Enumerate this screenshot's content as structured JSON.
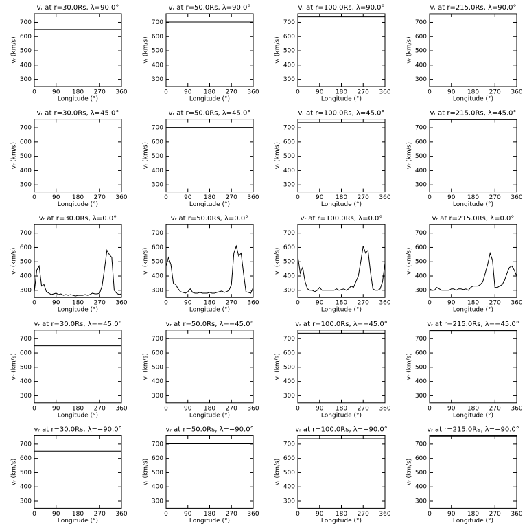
{
  "chart_data": [
    {
      "type": "line",
      "title": "vᵣ at r=30.0Rs, λ=90.0°",
      "x_label": "Longitude (°)",
      "y_label": "vᵣ (km/s)",
      "x": [
        0,
        360
      ],
      "values": [
        650,
        650
      ],
      "color": "#000000",
      "xlim": [
        0,
        360
      ],
      "ylim": [
        250,
        760
      ],
      "xticks": [
        0,
        90,
        180,
        270,
        360
      ],
      "yticks": [
        300,
        400,
        500,
        600,
        700
      ]
    },
    {
      "type": "line",
      "title": "vᵣ at r=50.0Rs, λ=90.0°",
      "x_label": "Longitude (°)",
      "y_label": "vᵣ (km/s)",
      "x": [
        0,
        360
      ],
      "values": [
        702,
        702
      ],
      "color": "#000000",
      "xlim": [
        0,
        360
      ],
      "ylim": [
        250,
        760
      ],
      "xticks": [
        0,
        90,
        180,
        270,
        360
      ],
      "yticks": [
        300,
        400,
        500,
        600,
        700
      ]
    },
    {
      "type": "line",
      "title": "vᵣ at r=100.0Rs, λ=90.0°",
      "x_label": "Longitude (°)",
      "y_label": "vᵣ (km/s)",
      "x": [
        0,
        360
      ],
      "values": [
        738,
        738
      ],
      "color": "#000000",
      "xlim": [
        0,
        360
      ],
      "ylim": [
        250,
        760
      ],
      "xticks": [
        0,
        90,
        180,
        270,
        360
      ],
      "yticks": [
        300,
        400,
        500,
        600,
        700
      ]
    },
    {
      "type": "line",
      "title": "vᵣ at r=215.0Rs, λ=90.0°",
      "x_label": "Longitude (°)",
      "y_label": "vᵣ (km/s)",
      "x": [
        0,
        360
      ],
      "values": [
        756,
        756
      ],
      "color": "#000000",
      "xlim": [
        0,
        360
      ],
      "ylim": [
        250,
        760
      ],
      "xticks": [
        0,
        90,
        180,
        270,
        360
      ],
      "yticks": [
        300,
        400,
        500,
        600,
        700
      ]
    },
    {
      "type": "line",
      "title": "vᵣ at r=30.0Rs, λ=45.0°",
      "x_label": "Longitude (°)",
      "y_label": "vᵣ (km/s)",
      "x": [
        0,
        360
      ],
      "values": [
        650,
        650
      ],
      "color": "#000000",
      "xlim": [
        0,
        360
      ],
      "ylim": [
        250,
        760
      ],
      "xticks": [
        0,
        90,
        180,
        270,
        360
      ],
      "yticks": [
        300,
        400,
        500,
        600,
        700
      ]
    },
    {
      "type": "line",
      "title": "vᵣ at r=50.0Rs, λ=45.0°",
      "x_label": "Longitude (°)",
      "y_label": "vᵣ (km/s)",
      "x": [
        0,
        360
      ],
      "values": [
        702,
        702
      ],
      "color": "#000000",
      "xlim": [
        0,
        360
      ],
      "ylim": [
        250,
        760
      ],
      "xticks": [
        0,
        90,
        180,
        270,
        360
      ],
      "yticks": [
        300,
        400,
        500,
        600,
        700
      ]
    },
    {
      "type": "line",
      "title": "vᵣ at r=100.0Rs, λ=45.0°",
      "x_label": "Longitude (°)",
      "y_label": "vᵣ (km/s)",
      "x": [
        0,
        360
      ],
      "values": [
        738,
        738
      ],
      "color": "#000000",
      "xlim": [
        0,
        360
      ],
      "ylim": [
        250,
        760
      ],
      "xticks": [
        0,
        90,
        180,
        270,
        360
      ],
      "yticks": [
        300,
        400,
        500,
        600,
        700
      ]
    },
    {
      "type": "line",
      "title": "vᵣ at r=215.0Rs, λ=45.0°",
      "x_label": "Longitude (°)",
      "y_label": "vᵣ (km/s)",
      "x": [
        0,
        360
      ],
      "values": [
        756,
        756
      ],
      "color": "#000000",
      "xlim": [
        0,
        360
      ],
      "ylim": [
        250,
        760
      ],
      "xticks": [
        0,
        90,
        180,
        270,
        360
      ],
      "yticks": [
        300,
        400,
        500,
        600,
        700
      ]
    },
    {
      "type": "line",
      "title": "vᵣ at r=30.0Rs, λ=0.0°",
      "x_label": "Longitude (°)",
      "y_label": "vᵣ (km/s)",
      "x": [
        0,
        10,
        20,
        30,
        40,
        50,
        60,
        70,
        80,
        90,
        100,
        110,
        120,
        130,
        140,
        150,
        160,
        170,
        180,
        190,
        200,
        210,
        220,
        230,
        240,
        250,
        260,
        270,
        280,
        290,
        300,
        310,
        320,
        330,
        340,
        350,
        360
      ],
      "values": [
        290,
        440,
        470,
        330,
        340,
        290,
        280,
        270,
        275,
        280,
        270,
        275,
        265,
        270,
        265,
        270,
        265,
        260,
        265,
        265,
        265,
        270,
        265,
        270,
        280,
        275,
        275,
        280,
        330,
        450,
        580,
        550,
        530,
        300,
        280,
        270,
        275
      ],
      "color": "#000000",
      "xlim": [
        0,
        360
      ],
      "ylim": [
        250,
        760
      ],
      "xticks": [
        0,
        90,
        180,
        270,
        360
      ],
      "yticks": [
        300,
        400,
        500,
        600,
        700
      ]
    },
    {
      "type": "line",
      "title": "vᵣ at r=50.0Rs, λ=0.0°",
      "x_label": "Longitude (°)",
      "y_label": "vᵣ (km/s)",
      "x": [
        0,
        10,
        20,
        30,
        40,
        50,
        60,
        70,
        80,
        90,
        100,
        110,
        120,
        130,
        140,
        150,
        160,
        170,
        180,
        190,
        200,
        210,
        220,
        230,
        240,
        250,
        260,
        270,
        280,
        290,
        300,
        310,
        320,
        330,
        340,
        350,
        360
      ],
      "values": [
        470,
        530,
        480,
        350,
        340,
        310,
        290,
        285,
        280,
        290,
        310,
        285,
        280,
        280,
        285,
        280,
        280,
        280,
        285,
        280,
        280,
        285,
        290,
        295,
        285,
        290,
        300,
        340,
        560,
        610,
        540,
        560,
        420,
        290,
        285,
        280,
        320
      ],
      "color": "#000000",
      "xlim": [
        0,
        360
      ],
      "ylim": [
        250,
        760
      ],
      "xticks": [
        0,
        90,
        180,
        270,
        360
      ],
      "yticks": [
        300,
        400,
        500,
        600,
        700
      ]
    },
    {
      "type": "line",
      "title": "vᵣ at r=100.0Rs, λ=0.0°",
      "x_label": "Longitude (°)",
      "y_label": "vᵣ (km/s)",
      "x": [
        0,
        10,
        20,
        30,
        40,
        50,
        60,
        70,
        80,
        90,
        100,
        110,
        120,
        130,
        140,
        150,
        160,
        170,
        180,
        190,
        200,
        210,
        220,
        230,
        240,
        250,
        260,
        270,
        280,
        290,
        300,
        310,
        320,
        330,
        340,
        350,
        360
      ],
      "values": [
        540,
        420,
        460,
        360,
        310,
        300,
        300,
        290,
        300,
        320,
        300,
        300,
        300,
        300,
        300,
        300,
        310,
        300,
        305,
        310,
        300,
        310,
        330,
        320,
        360,
        400,
        500,
        610,
        560,
        580,
        430,
        310,
        300,
        300,
        310,
        360,
        490
      ],
      "color": "#000000",
      "xlim": [
        0,
        360
      ],
      "ylim": [
        250,
        760
      ],
      "xticks": [
        0,
        90,
        180,
        270,
        360
      ],
      "yticks": [
        300,
        400,
        500,
        600,
        700
      ]
    },
    {
      "type": "line",
      "title": "vᵣ at r=215.0Rs, λ=0.0°",
      "x_label": "Longitude (°)",
      "y_label": "vᵣ (km/s)",
      "x": [
        0,
        10,
        20,
        30,
        40,
        50,
        60,
        70,
        80,
        90,
        100,
        110,
        120,
        130,
        140,
        150,
        160,
        170,
        180,
        190,
        200,
        210,
        220,
        230,
        240,
        250,
        260,
        270,
        280,
        290,
        300,
        310,
        320,
        330,
        340,
        350,
        360
      ],
      "values": [
        310,
        300,
        300,
        320,
        310,
        300,
        300,
        300,
        300,
        310,
        310,
        300,
        310,
        310,
        305,
        310,
        300,
        320,
        330,
        330,
        330,
        340,
        360,
        420,
        480,
        560,
        510,
        320,
        320,
        330,
        340,
        370,
        420,
        460,
        470,
        440,
        400
      ],
      "color": "#000000",
      "xlim": [
        0,
        360
      ],
      "ylim": [
        250,
        760
      ],
      "xticks": [
        0,
        90,
        180,
        270,
        360
      ],
      "yticks": [
        300,
        400,
        500,
        600,
        700
      ]
    },
    {
      "type": "line",
      "title": "vᵣ at r=30.0Rs, λ=−45.0°",
      "x_label": "Longitude (°)",
      "y_label": "vᵣ (km/s)",
      "x": [
        0,
        360
      ],
      "values": [
        650,
        650
      ],
      "color": "#000000",
      "xlim": [
        0,
        360
      ],
      "ylim": [
        250,
        760
      ],
      "xticks": [
        0,
        90,
        180,
        270,
        360
      ],
      "yticks": [
        300,
        400,
        500,
        600,
        700
      ]
    },
    {
      "type": "line",
      "title": "vᵣ at r=50.0Rs, λ=−45.0°",
      "x_label": "Longitude (°)",
      "y_label": "vᵣ (km/s)",
      "x": [
        0,
        360
      ],
      "values": [
        702,
        702
      ],
      "color": "#000000",
      "xlim": [
        0,
        360
      ],
      "ylim": [
        250,
        760
      ],
      "xticks": [
        0,
        90,
        180,
        270,
        360
      ],
      "yticks": [
        300,
        400,
        500,
        600,
        700
      ]
    },
    {
      "type": "line",
      "title": "vᵣ at r=100.0Rs, λ=−45.0°",
      "x_label": "Longitude (°)",
      "y_label": "vᵣ (km/s)",
      "x": [
        0,
        360
      ],
      "values": [
        738,
        738
      ],
      "color": "#000000",
      "xlim": [
        0,
        360
      ],
      "ylim": [
        250,
        760
      ],
      "xticks": [
        0,
        90,
        180,
        270,
        360
      ],
      "yticks": [
        300,
        400,
        500,
        600,
        700
      ]
    },
    {
      "type": "line",
      "title": "vᵣ at r=215.0Rs, λ=−45.0°",
      "x_label": "Longitude (°)",
      "y_label": "vᵣ (km/s)",
      "x": [
        0,
        360
      ],
      "values": [
        756,
        756
      ],
      "color": "#000000",
      "xlim": [
        0,
        360
      ],
      "ylim": [
        250,
        760
      ],
      "xticks": [
        0,
        90,
        180,
        270,
        360
      ],
      "yticks": [
        300,
        400,
        500,
        600,
        700
      ]
    },
    {
      "type": "line",
      "title": "vᵣ at r=30.0Rs, λ=−90.0°",
      "x_label": "Longitude (°)",
      "y_label": "vᵣ (km/s)",
      "x": [
        0,
        360
      ],
      "values": [
        650,
        650
      ],
      "color": "#000000",
      "xlim": [
        0,
        360
      ],
      "ylim": [
        250,
        760
      ],
      "xticks": [
        0,
        90,
        180,
        270,
        360
      ],
      "yticks": [
        300,
        400,
        500,
        600,
        700
      ]
    },
    {
      "type": "line",
      "title": "vᵣ at r=50.0Rs, λ=−90.0°",
      "x_label": "Longitude (°)",
      "y_label": "vᵣ (km/s)",
      "x": [
        0,
        360
      ],
      "values": [
        702,
        702
      ],
      "color": "#000000",
      "xlim": [
        0,
        360
      ],
      "ylim": [
        250,
        760
      ],
      "xticks": [
        0,
        90,
        180,
        270,
        360
      ],
      "yticks": [
        300,
        400,
        500,
        600,
        700
      ]
    },
    {
      "type": "line",
      "title": "vᵣ at r=100.0Rs, λ=−90.0°",
      "x_label": "Longitude (°)",
      "y_label": "vᵣ (km/s)",
      "x": [
        0,
        360
      ],
      "values": [
        738,
        738
      ],
      "color": "#000000",
      "xlim": [
        0,
        360
      ],
      "ylim": [
        250,
        760
      ],
      "xticks": [
        0,
        90,
        180,
        270,
        360
      ],
      "yticks": [
        300,
        400,
        500,
        600,
        700
      ]
    },
    {
      "type": "line",
      "title": "vᵣ at r=215.0Rs, λ=−90.0°",
      "x_label": "Longitude (°)",
      "y_label": "vᵣ (km/s)",
      "x": [
        0,
        360
      ],
      "values": [
        756,
        756
      ],
      "color": "#000000",
      "xlim": [
        0,
        360
      ],
      "ylim": [
        250,
        760
      ],
      "xticks": [
        0,
        90,
        180,
        270,
        360
      ],
      "yticks": [
        300,
        400,
        500,
        600,
        700
      ]
    }
  ]
}
